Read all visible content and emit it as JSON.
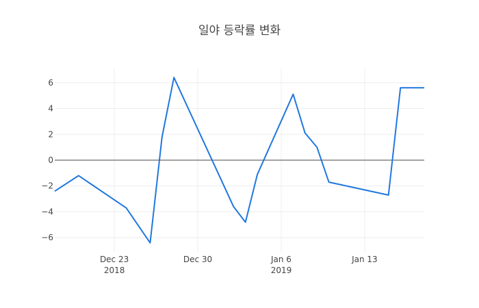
{
  "chart_data": {
    "type": "line",
    "title": "일야 등락률 변화",
    "xlabel": "",
    "ylabel": "",
    "x": [
      "2018-12-18",
      "2018-12-20",
      "2018-12-24",
      "2018-12-26",
      "2018-12-27",
      "2018-12-28",
      "2019-01-02",
      "2019-01-03",
      "2019-01-04",
      "2019-01-07",
      "2019-01-08",
      "2019-01-09",
      "2019-01-10",
      "2019-01-11",
      "2019-01-15",
      "2019-01-16",
      "2019-01-18"
    ],
    "series": [
      {
        "values": [
          -2.4,
          -1.2,
          -3.7,
          -6.4,
          1.8,
          6.4,
          -3.6,
          -4.8,
          -1.1,
          5.1,
          2.1,
          1.0,
          -1.7,
          -1.9,
          -2.7,
          5.6,
          5.6
        ],
        "color": "#1f77dd"
      }
    ],
    "xlim": [
      "2018-12-18",
      "2019-01-18"
    ],
    "ylim": [
      -7.1,
      7.1
    ],
    "yticks": [
      6,
      4,
      2,
      0,
      -2,
      -4,
      -6
    ],
    "ytick_labels": [
      "6",
      "4",
      "2",
      "0",
      "−2",
      "−4",
      "−6"
    ],
    "xticks": [
      "2018-12-23",
      "2018-12-30",
      "2019-01-06",
      "2019-01-13"
    ],
    "xtick_labels": [
      "Dec 23",
      "Dec 30",
      "Jan 6",
      "Jan 13"
    ],
    "xtick_sublabels": [
      "2018",
      "",
      "2019",
      ""
    ],
    "grid": true,
    "zero_line": true,
    "legend": "none"
  }
}
